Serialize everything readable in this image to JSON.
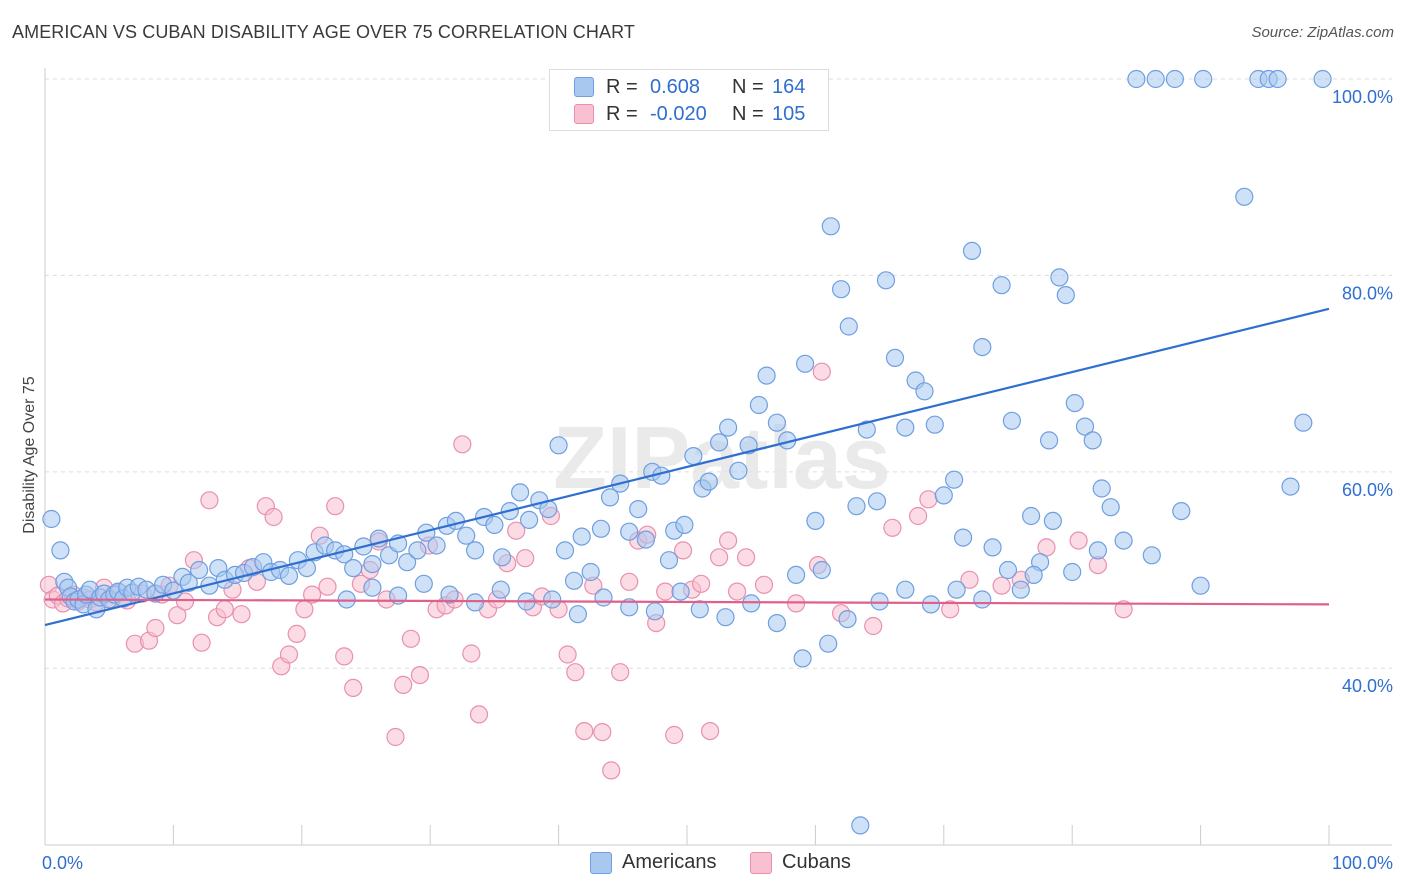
{
  "title": "AMERICAN VS CUBAN DISABILITY AGE OVER 75 CORRELATION CHART",
  "source": "Source: ZipAtlas.com",
  "watermark": "ZIPatlas",
  "stats": [
    {
      "r_label": "R =",
      "r_value": "0.608",
      "n_label": "N =",
      "n_value": "164"
    },
    {
      "r_label": "R =",
      "r_value": "-0.020",
      "n_label": "N =",
      "n_value": "105"
    }
  ],
  "legend": [
    {
      "label": "Americans"
    },
    {
      "label": "Cubans"
    }
  ],
  "colors": {
    "american_fill": "#a8c8f0",
    "american_stroke": "#6f9fe0",
    "american_line": "#2f6fd0",
    "cuban_fill": "#f8c0d0",
    "cuban_stroke": "#e890b0",
    "cuban_line": "#e0608c",
    "accent_text": "#2f6fd0"
  },
  "chart_data": {
    "type": "scatter",
    "ylabel": "Disability Age Over 75",
    "xlabel": "",
    "x_tick_labels": [
      "0.0%",
      "100.0%"
    ],
    "y_tick_labels": [
      "40.0%",
      "60.0%",
      "80.0%",
      "100.0%"
    ],
    "xlim": [
      0,
      100
    ],
    "ylim": [
      22,
      100
    ],
    "grid": true,
    "series": [
      {
        "name": "Americans",
        "trend": {
          "x": [
            0,
            100
          ],
          "y": [
            44.4,
            76.6
          ]
        },
        "points": [
          [
            0.5,
            55.2
          ],
          [
            1.2,
            52.0
          ],
          [
            1.5,
            48.8
          ],
          [
            1.8,
            48.2
          ],
          [
            2.0,
            47.3
          ],
          [
            2.3,
            46.8
          ],
          [
            2.6,
            47.0
          ],
          [
            3.0,
            46.5
          ],
          [
            3.2,
            47.5
          ],
          [
            3.5,
            48.0
          ],
          [
            4.0,
            46.0
          ],
          [
            4.3,
            47.2
          ],
          [
            4.6,
            47.6
          ],
          [
            5.0,
            47.0
          ],
          [
            5.4,
            47.5
          ],
          [
            5.7,
            47.8
          ],
          [
            6.1,
            47.1
          ],
          [
            6.4,
            48.2
          ],
          [
            6.8,
            47.7
          ],
          [
            7.3,
            48.3
          ],
          [
            7.9,
            48.0
          ],
          [
            8.6,
            47.6
          ],
          [
            9.2,
            48.5
          ],
          [
            10.0,
            47.9
          ],
          [
            10.7,
            49.3
          ],
          [
            11.2,
            48.7
          ],
          [
            12.0,
            50.0
          ],
          [
            12.8,
            48.4
          ],
          [
            13.5,
            50.2
          ],
          [
            14.0,
            49.0
          ],
          [
            14.8,
            49.5
          ],
          [
            15.5,
            49.7
          ],
          [
            16.2,
            50.3
          ],
          [
            17.0,
            50.8
          ],
          [
            17.6,
            49.8
          ],
          [
            18.3,
            50.0
          ],
          [
            19.0,
            49.4
          ],
          [
            19.7,
            51.0
          ],
          [
            20.4,
            50.2
          ],
          [
            21.0,
            51.8
          ],
          [
            21.8,
            52.5
          ],
          [
            22.6,
            52.0
          ],
          [
            23.3,
            51.6
          ],
          [
            24.0,
            50.2
          ],
          [
            24.8,
            52.4
          ],
          [
            25.5,
            50.6
          ],
          [
            26.0,
            53.2
          ],
          [
            26.8,
            51.5
          ],
          [
            27.5,
            52.7
          ],
          [
            28.2,
            50.8
          ],
          [
            29.0,
            52.0
          ],
          [
            29.7,
            53.8
          ],
          [
            30.5,
            52.5
          ],
          [
            31.3,
            54.5
          ],
          [
            32.0,
            55.0
          ],
          [
            32.8,
            53.5
          ],
          [
            33.5,
            52.0
          ],
          [
            34.2,
            55.4
          ],
          [
            35.0,
            54.6
          ],
          [
            35.6,
            51.3
          ],
          [
            36.2,
            56.0
          ],
          [
            37.0,
            57.9
          ],
          [
            37.7,
            55.1
          ],
          [
            38.5,
            57.1
          ],
          [
            39.2,
            56.2
          ],
          [
            40.0,
            62.7
          ],
          [
            40.5,
            52.0
          ],
          [
            41.2,
            48.9
          ],
          [
            41.8,
            53.4
          ],
          [
            42.5,
            49.8
          ],
          [
            43.3,
            54.2
          ],
          [
            44.0,
            57.4
          ],
          [
            44.8,
            58.8
          ],
          [
            45.5,
            53.9
          ],
          [
            46.2,
            56.2
          ],
          [
            46.8,
            53.1
          ],
          [
            47.3,
            60.0
          ],
          [
            48.0,
            59.6
          ],
          [
            48.6,
            51.0
          ],
          [
            49.0,
            54.0
          ],
          [
            49.8,
            54.6
          ],
          [
            50.5,
            61.6
          ],
          [
            51.2,
            58.3
          ],
          [
            51.7,
            59.0
          ],
          [
            52.5,
            63.0
          ],
          [
            53.2,
            64.5
          ],
          [
            54.0,
            60.1
          ],
          [
            54.8,
            62.7
          ],
          [
            55.6,
            66.8
          ],
          [
            56.2,
            69.8
          ],
          [
            57.0,
            65.0
          ],
          [
            57.8,
            63.2
          ],
          [
            58.5,
            49.5
          ],
          [
            59.2,
            71.0
          ],
          [
            60.0,
            55.0
          ],
          [
            60.5,
            50.0
          ],
          [
            61.2,
            85.0
          ],
          [
            62.0,
            78.6
          ],
          [
            62.6,
            74.8
          ],
          [
            63.2,
            56.5
          ],
          [
            64.0,
            64.3
          ],
          [
            64.8,
            57.0
          ],
          [
            65.5,
            79.5
          ],
          [
            66.2,
            71.6
          ],
          [
            67.0,
            64.5
          ],
          [
            67.8,
            69.3
          ],
          [
            68.5,
            68.2
          ],
          [
            69.3,
            64.8
          ],
          [
            70.0,
            57.6
          ],
          [
            70.8,
            59.2
          ],
          [
            71.5,
            53.3
          ],
          [
            72.2,
            82.5
          ],
          [
            73.0,
            72.7
          ],
          [
            73.8,
            52.3
          ],
          [
            74.5,
            79.0
          ],
          [
            75.3,
            65.2
          ],
          [
            76.0,
            48.0
          ],
          [
            76.8,
            55.5
          ],
          [
            77.5,
            50.8
          ],
          [
            78.2,
            63.2
          ],
          [
            79.0,
            79.8
          ],
          [
            79.5,
            78.0
          ],
          [
            80.2,
            67.0
          ],
          [
            81.0,
            64.6
          ],
          [
            81.6,
            63.2
          ],
          [
            82.3,
            58.3
          ],
          [
            83.0,
            56.4
          ],
          [
            85.0,
            100.0
          ],
          [
            86.5,
            100.0
          ],
          [
            88.0,
            100.0
          ],
          [
            90.2,
            100.0
          ],
          [
            93.4,
            88.0
          ],
          [
            94.5,
            100.0
          ],
          [
            95.3,
            100.0
          ],
          [
            96.0,
            100.0
          ],
          [
            97.0,
            58.5
          ],
          [
            98.0,
            65.0
          ],
          [
            99.5,
            100.0
          ],
          [
            90.0,
            48.4
          ],
          [
            88.5,
            56.0
          ],
          [
            86.2,
            51.5
          ],
          [
            84.0,
            53.0
          ],
          [
            82.0,
            52.0
          ],
          [
            80.0,
            49.8
          ],
          [
            78.5,
            55.0
          ],
          [
            77.0,
            49.5
          ],
          [
            75.0,
            50.0
          ],
          [
            73.0,
            47.0
          ],
          [
            71.0,
            48.0
          ],
          [
            69.0,
            46.5
          ],
          [
            67.0,
            48.0
          ],
          [
            65.0,
            46.8
          ],
          [
            63.5,
            24.0
          ],
          [
            62.5,
            45.0
          ],
          [
            61.0,
            42.5
          ],
          [
            59.0,
            41.0
          ],
          [
            57.0,
            44.6
          ],
          [
            55.0,
            46.6
          ],
          [
            53.0,
            45.2
          ],
          [
            51.0,
            46.0
          ],
          [
            49.5,
            47.8
          ],
          [
            47.5,
            45.8
          ],
          [
            45.5,
            46.2
          ],
          [
            43.5,
            47.2
          ],
          [
            41.5,
            45.5
          ],
          [
            39.5,
            47.0
          ],
          [
            37.5,
            46.8
          ],
          [
            35.5,
            48.0
          ],
          [
            33.5,
            46.7
          ],
          [
            31.5,
            47.5
          ],
          [
            29.5,
            48.6
          ],
          [
            27.5,
            47.4
          ],
          [
            25.5,
            48.2
          ],
          [
            23.5,
            47.0
          ]
        ]
      },
      {
        "name": "Cubans",
        "trend": {
          "x": [
            0,
            100
          ],
          "y": [
            47.0,
            46.5
          ]
        },
        "points": [
          [
            0.3,
            48.5
          ],
          [
            0.6,
            47.0
          ],
          [
            1.0,
            47.4
          ],
          [
            1.4,
            46.6
          ],
          [
            1.8,
            47.1
          ],
          [
            2.2,
            47.5
          ],
          [
            2.6,
            46.8
          ],
          [
            3.0,
            47.2
          ],
          [
            3.5,
            47.0
          ],
          [
            4.0,
            46.7
          ],
          [
            4.6,
            48.2
          ],
          [
            5.2,
            47.0
          ],
          [
            5.8,
            47.7
          ],
          [
            6.4,
            46.9
          ],
          [
            7.0,
            42.5
          ],
          [
            7.6,
            47.6
          ],
          [
            8.1,
            42.8
          ],
          [
            8.6,
            44.1
          ],
          [
            9.1,
            47.5
          ],
          [
            9.7,
            48.4
          ],
          [
            10.3,
            45.4
          ],
          [
            10.9,
            46.8
          ],
          [
            11.6,
            51.0
          ],
          [
            12.2,
            42.6
          ],
          [
            12.8,
            57.1
          ],
          [
            13.4,
            45.2
          ],
          [
            14.0,
            46.0
          ],
          [
            14.6,
            48.0
          ],
          [
            15.3,
            45.5
          ],
          [
            15.9,
            50.2
          ],
          [
            16.5,
            48.8
          ],
          [
            17.2,
            56.5
          ],
          [
            17.8,
            55.4
          ],
          [
            18.4,
            40.2
          ],
          [
            19.0,
            41.4
          ],
          [
            19.6,
            43.5
          ],
          [
            20.2,
            46.0
          ],
          [
            20.8,
            47.5
          ],
          [
            21.4,
            53.5
          ],
          [
            22.0,
            48.3
          ],
          [
            22.6,
            56.5
          ],
          [
            23.3,
            41.2
          ],
          [
            24.0,
            38.0
          ],
          [
            24.6,
            48.6
          ],
          [
            25.3,
            50.0
          ],
          [
            26.0,
            52.9
          ],
          [
            26.6,
            47.0
          ],
          [
            27.3,
            33.0
          ],
          [
            27.9,
            38.3
          ],
          [
            28.5,
            43.0
          ],
          [
            29.2,
            39.3
          ],
          [
            29.9,
            52.5
          ],
          [
            30.5,
            46.0
          ],
          [
            31.2,
            46.4
          ],
          [
            31.9,
            47.0
          ],
          [
            32.5,
            62.8
          ],
          [
            33.2,
            41.5
          ],
          [
            33.8,
            35.3
          ],
          [
            34.5,
            46.0
          ],
          [
            35.2,
            47.0
          ],
          [
            36.0,
            50.7
          ],
          [
            36.7,
            54.0
          ],
          [
            37.4,
            51.2
          ],
          [
            38.0,
            46.2
          ],
          [
            38.7,
            47.3
          ],
          [
            39.4,
            55.5
          ],
          [
            40.0,
            46.0
          ],
          [
            40.7,
            41.4
          ],
          [
            41.3,
            39.6
          ],
          [
            42.0,
            33.6
          ],
          [
            42.7,
            48.4
          ],
          [
            43.4,
            33.5
          ],
          [
            44.1,
            29.6
          ],
          [
            44.8,
            39.6
          ],
          [
            45.5,
            48.8
          ],
          [
            46.2,
            53.0
          ],
          [
            46.9,
            53.6
          ],
          [
            47.6,
            44.6
          ],
          [
            48.3,
            47.8
          ],
          [
            49.0,
            33.2
          ],
          [
            49.7,
            52.0
          ],
          [
            50.4,
            48.0
          ],
          [
            51.1,
            48.6
          ],
          [
            51.8,
            33.6
          ],
          [
            52.5,
            51.3
          ],
          [
            53.2,
            53.0
          ],
          [
            53.9,
            47.8
          ],
          [
            54.6,
            51.3
          ],
          [
            56.0,
            48.5
          ],
          [
            58.5,
            46.6
          ],
          [
            60.2,
            50.5
          ],
          [
            62.0,
            45.6
          ],
          [
            64.5,
            44.3
          ],
          [
            66.0,
            54.3
          ],
          [
            68.0,
            55.5
          ],
          [
            70.5,
            46.0
          ],
          [
            72.0,
            49.0
          ],
          [
            74.5,
            48.4
          ],
          [
            76.0,
            49.0
          ],
          [
            78.0,
            52.3
          ],
          [
            80.5,
            53.0
          ],
          [
            82.0,
            50.5
          ],
          [
            84.0,
            46.0
          ],
          [
            60.5,
            70.2
          ],
          [
            68.8,
            57.2
          ]
        ]
      }
    ]
  }
}
